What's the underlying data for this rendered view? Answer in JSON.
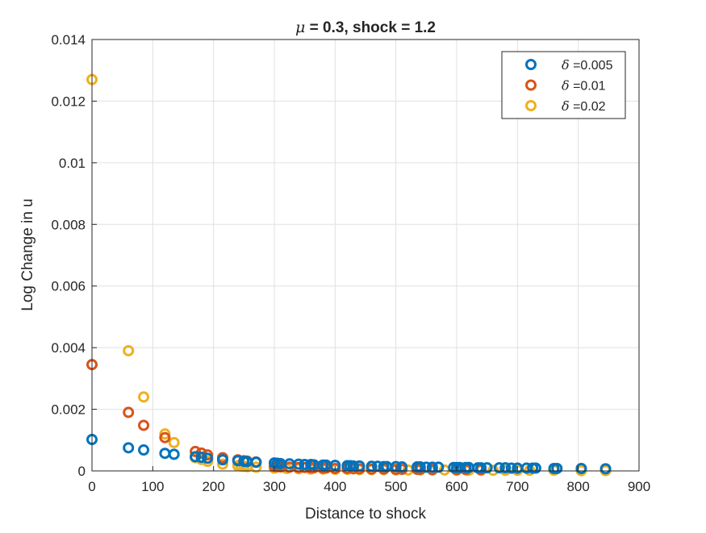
{
  "chart_data": {
    "type": "scatter",
    "title": "μ = 0.3, shock = 1.2",
    "title_symbol": "μ",
    "title_rest": " = 0.3, shock = 1.2",
    "xlabel": "Distance to shock",
    "ylabel": "Log Change in u",
    "xlim": [
      0,
      900
    ],
    "ylim": [
      0,
      0.014
    ],
    "xticks": [
      "0",
      "100",
      "200",
      "300",
      "400",
      "500",
      "600",
      "700",
      "800",
      "900"
    ],
    "yticks": [
      "0",
      "0.002",
      "0.004",
      "0.006",
      "0.008",
      "0.01",
      "0.012",
      "0.014"
    ],
    "grid": true,
    "legend_position": "top-right",
    "marker": "open-circle",
    "series": [
      {
        "name": "δ =0.005",
        "symbol": "δ",
        "label_rest": " =0.005",
        "color": "#0072BD",
        "x": [
          0,
          60,
          85,
          120,
          135,
          170,
          180,
          190,
          215,
          240,
          250,
          255,
          270,
          300,
          305,
          310,
          325,
          340,
          350,
          360,
          365,
          380,
          385,
          400,
          420,
          425,
          430,
          440,
          460,
          470,
          480,
          485,
          500,
          510,
          535,
          540,
          550,
          560,
          570,
          595,
          600,
          605,
          615,
          620,
          635,
          640,
          650,
          670,
          680,
          690,
          700,
          715,
          725,
          730,
          760,
          765,
          805,
          845
        ],
        "y": [
          0.00102,
          0.00075,
          0.00068,
          0.00057,
          0.00054,
          0.00046,
          0.00044,
          0.00041,
          0.00036,
          0.00033,
          0.00031,
          0.0003,
          0.00028,
          0.00026,
          0.00025,
          0.00024,
          0.00023,
          0.00022,
          0.00021,
          0.00021,
          0.0002,
          0.00019,
          0.00019,
          0.00018,
          0.00017,
          0.00017,
          0.00016,
          0.00016,
          0.00015,
          0.00015,
          0.00014,
          0.00014,
          0.00014,
          0.00013,
          0.00013,
          0.00013,
          0.00012,
          0.00012,
          0.00012,
          0.00011,
          0.00011,
          0.00011,
          0.00011,
          0.00011,
          0.0001,
          0.0001,
          0.0001,
          0.0001,
          0.0001,
          9e-05,
          9e-05,
          9e-05,
          9e-05,
          9e-05,
          8e-05,
          8e-05,
          8e-05,
          7e-05
        ]
      },
      {
        "name": "δ =0.01",
        "symbol": "δ",
        "label_rest": " =0.01",
        "color": "#D95319",
        "x": [
          0,
          60,
          85,
          120,
          170,
          180,
          190,
          215,
          240,
          250,
          255,
          270,
          300,
          305,
          310,
          325,
          340,
          350,
          360,
          365,
          380,
          385,
          400,
          420,
          430,
          440,
          460,
          480,
          500,
          510,
          535,
          540,
          560,
          600,
          615,
          640
        ],
        "y": [
          0.00345,
          0.0019,
          0.00148,
          0.00108,
          0.00063,
          0.00058,
          0.00052,
          0.00043,
          0.00036,
          0.00033,
          0.00032,
          0.00029,
          0.00015,
          0.00014,
          0.00013,
          0.00012,
          0.00011,
          0.00011,
          0.0001,
          0.0001,
          9e-05,
          9e-05,
          8e-05,
          8e-05,
          7e-05,
          7e-05,
          6e-05,
          6e-05,
          5e-05,
          5e-05,
          5e-05,
          5e-05,
          4e-05,
          4e-05,
          4e-05,
          4e-05
        ]
      },
      {
        "name": "δ =0.02",
        "symbol": "δ",
        "label_rest": " =0.02",
        "color": "#EDB120",
        "x": [
          0,
          60,
          85,
          120,
          135,
          170,
          180,
          190,
          215,
          240,
          245,
          250,
          255,
          270,
          300,
          320,
          340,
          360,
          380,
          400,
          420,
          440,
          460,
          480,
          500,
          520,
          540,
          560,
          580,
          600,
          620,
          640,
          660,
          680,
          700,
          720,
          760,
          805,
          845
        ],
        "y": [
          0.0127,
          0.0039,
          0.0024,
          0.0012,
          0.00092,
          0.00043,
          0.00037,
          0.00031,
          0.00022,
          0.00017,
          0.00016,
          0.00015,
          0.00014,
          0.00012,
          9e-05,
          8e-05,
          7e-05,
          6e-05,
          6e-05,
          5e-05,
          5e-05,
          4e-05,
          4e-05,
          4e-05,
          3e-05,
          3e-05,
          3e-05,
          3e-05,
          3e-05,
          2e-05,
          2e-05,
          2e-05,
          2e-05,
          2e-05,
          2e-05,
          2e-05,
          2e-05,
          1e-05,
          1e-05
        ]
      }
    ]
  }
}
